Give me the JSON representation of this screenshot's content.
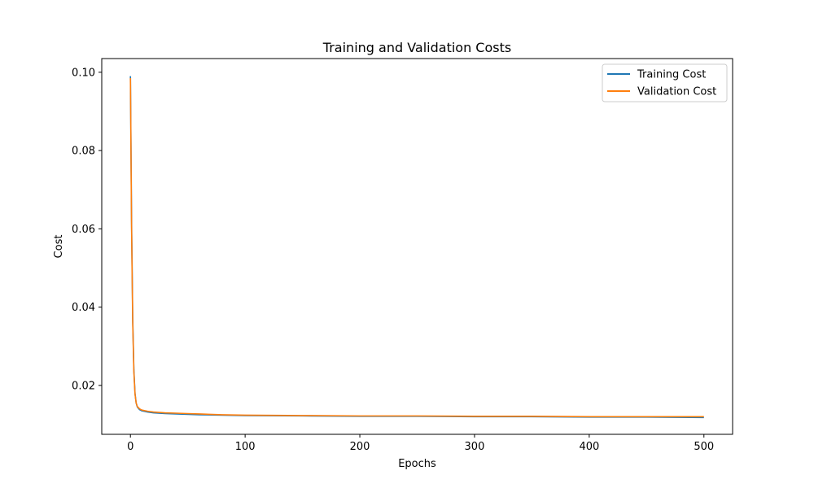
{
  "chart_data": {
    "type": "line",
    "title": "Training and Validation Costs",
    "xlabel": "Epochs",
    "ylabel": "Cost",
    "xlim": [
      -25,
      525
    ],
    "ylim": [
      0.0075,
      0.1035
    ],
    "xticks": [
      0,
      100,
      200,
      300,
      400,
      500
    ],
    "yticks": [
      0.02,
      0.04,
      0.06,
      0.08,
      0.1
    ],
    "ytick_labels": [
      "0.02",
      "0.04",
      "0.06",
      "0.08",
      "0.10"
    ],
    "grid": false,
    "legend_position": "top-right",
    "series": [
      {
        "name": "Training Cost",
        "color": "#1f77b4",
        "x": [
          0,
          1,
          2,
          3,
          4,
          5,
          6,
          8,
          10,
          15,
          20,
          30,
          40,
          50,
          60,
          80,
          100,
          150,
          200,
          250,
          300,
          350,
          400,
          450,
          500
        ],
        "y": [
          0.099,
          0.062,
          0.037,
          0.024,
          0.018,
          0.0155,
          0.0145,
          0.0138,
          0.0135,
          0.0132,
          0.013,
          0.0128,
          0.0127,
          0.0126,
          0.0125,
          0.0124,
          0.0123,
          0.0122,
          0.0121,
          0.0121,
          0.012,
          0.012,
          0.0119,
          0.0119,
          0.0118
        ]
      },
      {
        "name": "Validation Cost",
        "color": "#ff7f0e",
        "x": [
          0,
          1,
          2,
          3,
          4,
          5,
          6,
          8,
          10,
          15,
          20,
          30,
          40,
          50,
          60,
          80,
          100,
          150,
          200,
          250,
          300,
          350,
          400,
          450,
          500
        ],
        "y": [
          0.0985,
          0.06,
          0.036,
          0.0235,
          0.0178,
          0.0155,
          0.0146,
          0.014,
          0.0137,
          0.0134,
          0.0132,
          0.013,
          0.0129,
          0.0128,
          0.0127,
          0.0125,
          0.0124,
          0.0123,
          0.0122,
          0.0122,
          0.0121,
          0.0121,
          0.012,
          0.012,
          0.012
        ]
      }
    ]
  }
}
